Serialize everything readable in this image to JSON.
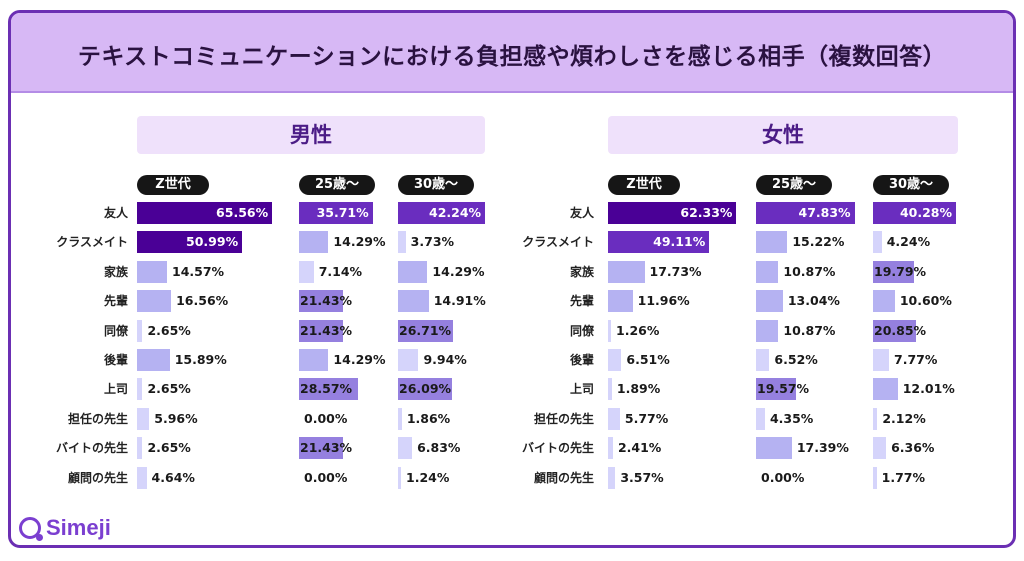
{
  "title": "テキストコミュニケーションにおける負担感や煩わしさを感じる相手（複数回答）",
  "logo_text": "Simeji",
  "colors": {
    "frame": "#6b2fb3",
    "title_bg": "#d7b8f5",
    "scale": [
      "#d5d4fb",
      "#b5b2f2",
      "#9580df",
      "#6a2dbf",
      "#4a0096"
    ]
  },
  "chart_data": {
    "type": "bar",
    "orientation": "horizontal",
    "categories": [
      "友人",
      "クラスメイト",
      "家族",
      "先輩",
      "同僚",
      "後輩",
      "上司",
      "担任の先生",
      "バイトの先生",
      "顧問の先生"
    ],
    "unit": "%",
    "panels": [
      {
        "name": "男性",
        "series": [
          {
            "name": "Z世代",
            "values": [
              65.56,
              50.99,
              14.57,
              16.56,
              2.65,
              15.89,
              2.65,
              5.96,
              2.65,
              4.64
            ]
          },
          {
            "name": "25歳〜",
            "values": [
              35.71,
              14.29,
              7.14,
              21.43,
              21.43,
              14.29,
              28.57,
              0.0,
              21.43,
              0.0
            ]
          },
          {
            "name": "30歳〜",
            "values": [
              42.24,
              3.73,
              14.29,
              14.91,
              26.71,
              9.94,
              26.09,
              1.86,
              6.83,
              1.24
            ]
          }
        ]
      },
      {
        "name": "女性",
        "series": [
          {
            "name": "Z世代",
            "values": [
              62.33,
              49.11,
              17.73,
              11.96,
              1.26,
              6.51,
              1.89,
              5.77,
              2.41,
              3.57
            ]
          },
          {
            "name": "25歳〜",
            "values": [
              47.83,
              15.22,
              10.87,
              13.04,
              10.87,
              6.52,
              19.57,
              4.35,
              17.39,
              0.0
            ]
          },
          {
            "name": "30歳〜",
            "values": [
              40.28,
              4.24,
              19.79,
              10.6,
              20.85,
              7.77,
              12.01,
              2.12,
              6.36,
              1.77
            ]
          }
        ]
      }
    ]
  }
}
